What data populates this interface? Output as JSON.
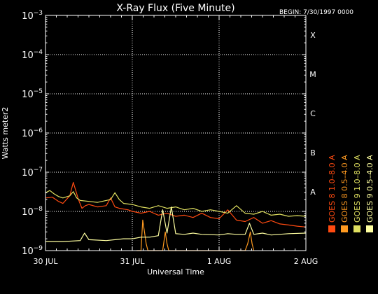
{
  "chart_data": {
    "type": "line",
    "title": "X-Ray Flux (Five Minute)",
    "begin_label": "BEGIN: 7/30/1997 0000",
    "xlabel": "Universal Time",
    "ylabel": "Watts meter2",
    "x_ticks": [
      {
        "label": "30 JUL",
        "day": 0
      },
      {
        "label": "31 JUL",
        "day": 1
      },
      {
        "label": "1 AUG",
        "day": 2
      },
      {
        "label": "2 AUG",
        "day": 3
      }
    ],
    "x_range_days": [
      0,
      3
    ],
    "y_scale": "log",
    "y_range": [
      1e-09,
      0.001
    ],
    "y_ticks": [
      {
        "base": "10",
        "exp": "−3",
        "value": 0.001
      },
      {
        "base": "10",
        "exp": "−4",
        "value": 0.0001
      },
      {
        "base": "10",
        "exp": "−5",
        "value": 1e-05
      },
      {
        "base": "10",
        "exp": "−6",
        "value": 1e-06
      },
      {
        "base": "10",
        "exp": "−7",
        "value": 1e-07
      },
      {
        "base": "10",
        "exp": "−8",
        "value": 1e-08
      },
      {
        "base": "10",
        "exp": "−9",
        "value": 1e-09
      }
    ],
    "flare_classes": [
      {
        "label": "X",
        "value": 0.000316
      },
      {
        "label": "M",
        "value": 3.16e-05
      },
      {
        "label": "C",
        "value": 3.16e-06
      },
      {
        "label": "B",
        "value": 3.16e-07
      },
      {
        "label": "A",
        "value": 3.16e-08
      }
    ],
    "grid": "dotted",
    "legend_placement": "right",
    "series": [
      {
        "name": "GOES 8 1.0–8.0 A",
        "color": "#ff4a10",
        "x": [
          0,
          0.08,
          0.15,
          0.2,
          0.28,
          0.32,
          0.38,
          0.42,
          0.46,
          0.5,
          0.6,
          0.7,
          0.75,
          0.8,
          0.85,
          0.95,
          1.0,
          1.1,
          1.2,
          1.3,
          1.4,
          1.5,
          1.6,
          1.7,
          1.8,
          1.9,
          2.0,
          2.1,
          2.2,
          2.3,
          2.4,
          2.5,
          2.6,
          2.7,
          2.8,
          2.9,
          3.0
        ],
        "y": [
          2.2e-08,
          2.3e-08,
          1.8e-08,
          1.6e-08,
          2.5e-08,
          5.5e-08,
          2e-08,
          1.2e-08,
          1.4e-08,
          1.5e-08,
          1.3e-08,
          1.4e-08,
          2.2e-08,
          1.3e-08,
          1.2e-08,
          1.1e-08,
          1e-08,
          9e-09,
          1e-08,
          8e-09,
          9e-09,
          7.5e-09,
          8e-09,
          7e-09,
          9e-09,
          7e-09,
          6.5e-09,
          1.1e-08,
          6e-09,
          5.5e-09,
          7e-09,
          5e-09,
          5.8e-09,
          4.8e-09,
          4.5e-09,
          4.2e-09,
          4e-09
        ]
      },
      {
        "name": "GOES 8 0.5–4.0 A",
        "color": "#ff9a20",
        "x": [
          1.05,
          1.1,
          1.12,
          1.14,
          1.16,
          1.18,
          1.2,
          1.25,
          1.35,
          1.38,
          1.4,
          1.42,
          1.45,
          1.5,
          1.55,
          1.6,
          2.3,
          2.33,
          2.36,
          2.38,
          2.4
        ],
        "y": [
          1e-09,
          1e-09,
          6e-09,
          3e-09,
          1.5e-09,
          1e-09,
          1e-09,
          1e-09,
          1e-09,
          3e-09,
          1.5e-09,
          1e-09,
          1e-09,
          1e-09,
          1e-09,
          1e-09,
          1e-09,
          1.5e-09,
          3e-09,
          1.5e-09,
          1e-09
        ]
      },
      {
        "name": "GOES 9 1.0–8.0 A",
        "color": "#e0e060",
        "x": [
          0,
          0.05,
          0.1,
          0.15,
          0.2,
          0.28,
          0.32,
          0.36,
          0.4,
          0.5,
          0.6,
          0.75,
          0.8,
          0.85,
          0.9,
          1.0,
          1.1,
          1.2,
          1.3,
          1.4,
          1.5,
          1.6,
          1.7,
          1.8,
          1.9,
          2.0,
          2.1,
          2.2,
          2.3,
          2.4,
          2.5,
          2.6,
          2.7,
          2.8,
          2.9,
          3.0
        ],
        "y": [
          3e-08,
          3.4e-08,
          2.8e-08,
          2.4e-08,
          2.2e-08,
          2.5e-08,
          3.2e-08,
          2.2e-08,
          1.9e-08,
          1.8e-08,
          1.7e-08,
          2e-08,
          3e-08,
          2e-08,
          1.6e-08,
          1.5e-08,
          1.3e-08,
          1.2e-08,
          1.4e-08,
          1.2e-08,
          1.3e-08,
          1.1e-08,
          1.2e-08,
          1e-08,
          1.1e-08,
          1e-08,
          9e-09,
          1.4e-08,
          9e-09,
          8.5e-09,
          1e-08,
          8e-09,
          8.5e-09,
          7.5e-09,
          7.8e-09,
          7.5e-09
        ]
      },
      {
        "name": "GOES 9 0.5–4.0 A",
        "color": "#ffffa0",
        "x": [
          0,
          0.2,
          0.4,
          0.45,
          0.5,
          0.7,
          0.9,
          1.0,
          1.1,
          1.2,
          1.3,
          1.35,
          1.4,
          1.45,
          1.5,
          1.6,
          1.7,
          1.8,
          2.0,
          2.1,
          2.2,
          2.3,
          2.35,
          2.4,
          2.5,
          2.6,
          2.8,
          3.0
        ],
        "y": [
          1.7e-09,
          1.7e-09,
          1.8e-09,
          2.8e-09,
          1.9e-09,
          1.8e-09,
          2e-09,
          2e-09,
          2.2e-09,
          2.2e-09,
          2.4e-09,
          1.1e-08,
          2.8e-09,
          1.3e-08,
          2.7e-09,
          2.6e-09,
          2.8e-09,
          2.6e-09,
          2.5e-09,
          2.7e-09,
          2.6e-09,
          2.6e-09,
          5e-09,
          2.6e-09,
          2.8e-09,
          2.5e-09,
          2.7e-09,
          2.8e-09
        ]
      }
    ]
  }
}
